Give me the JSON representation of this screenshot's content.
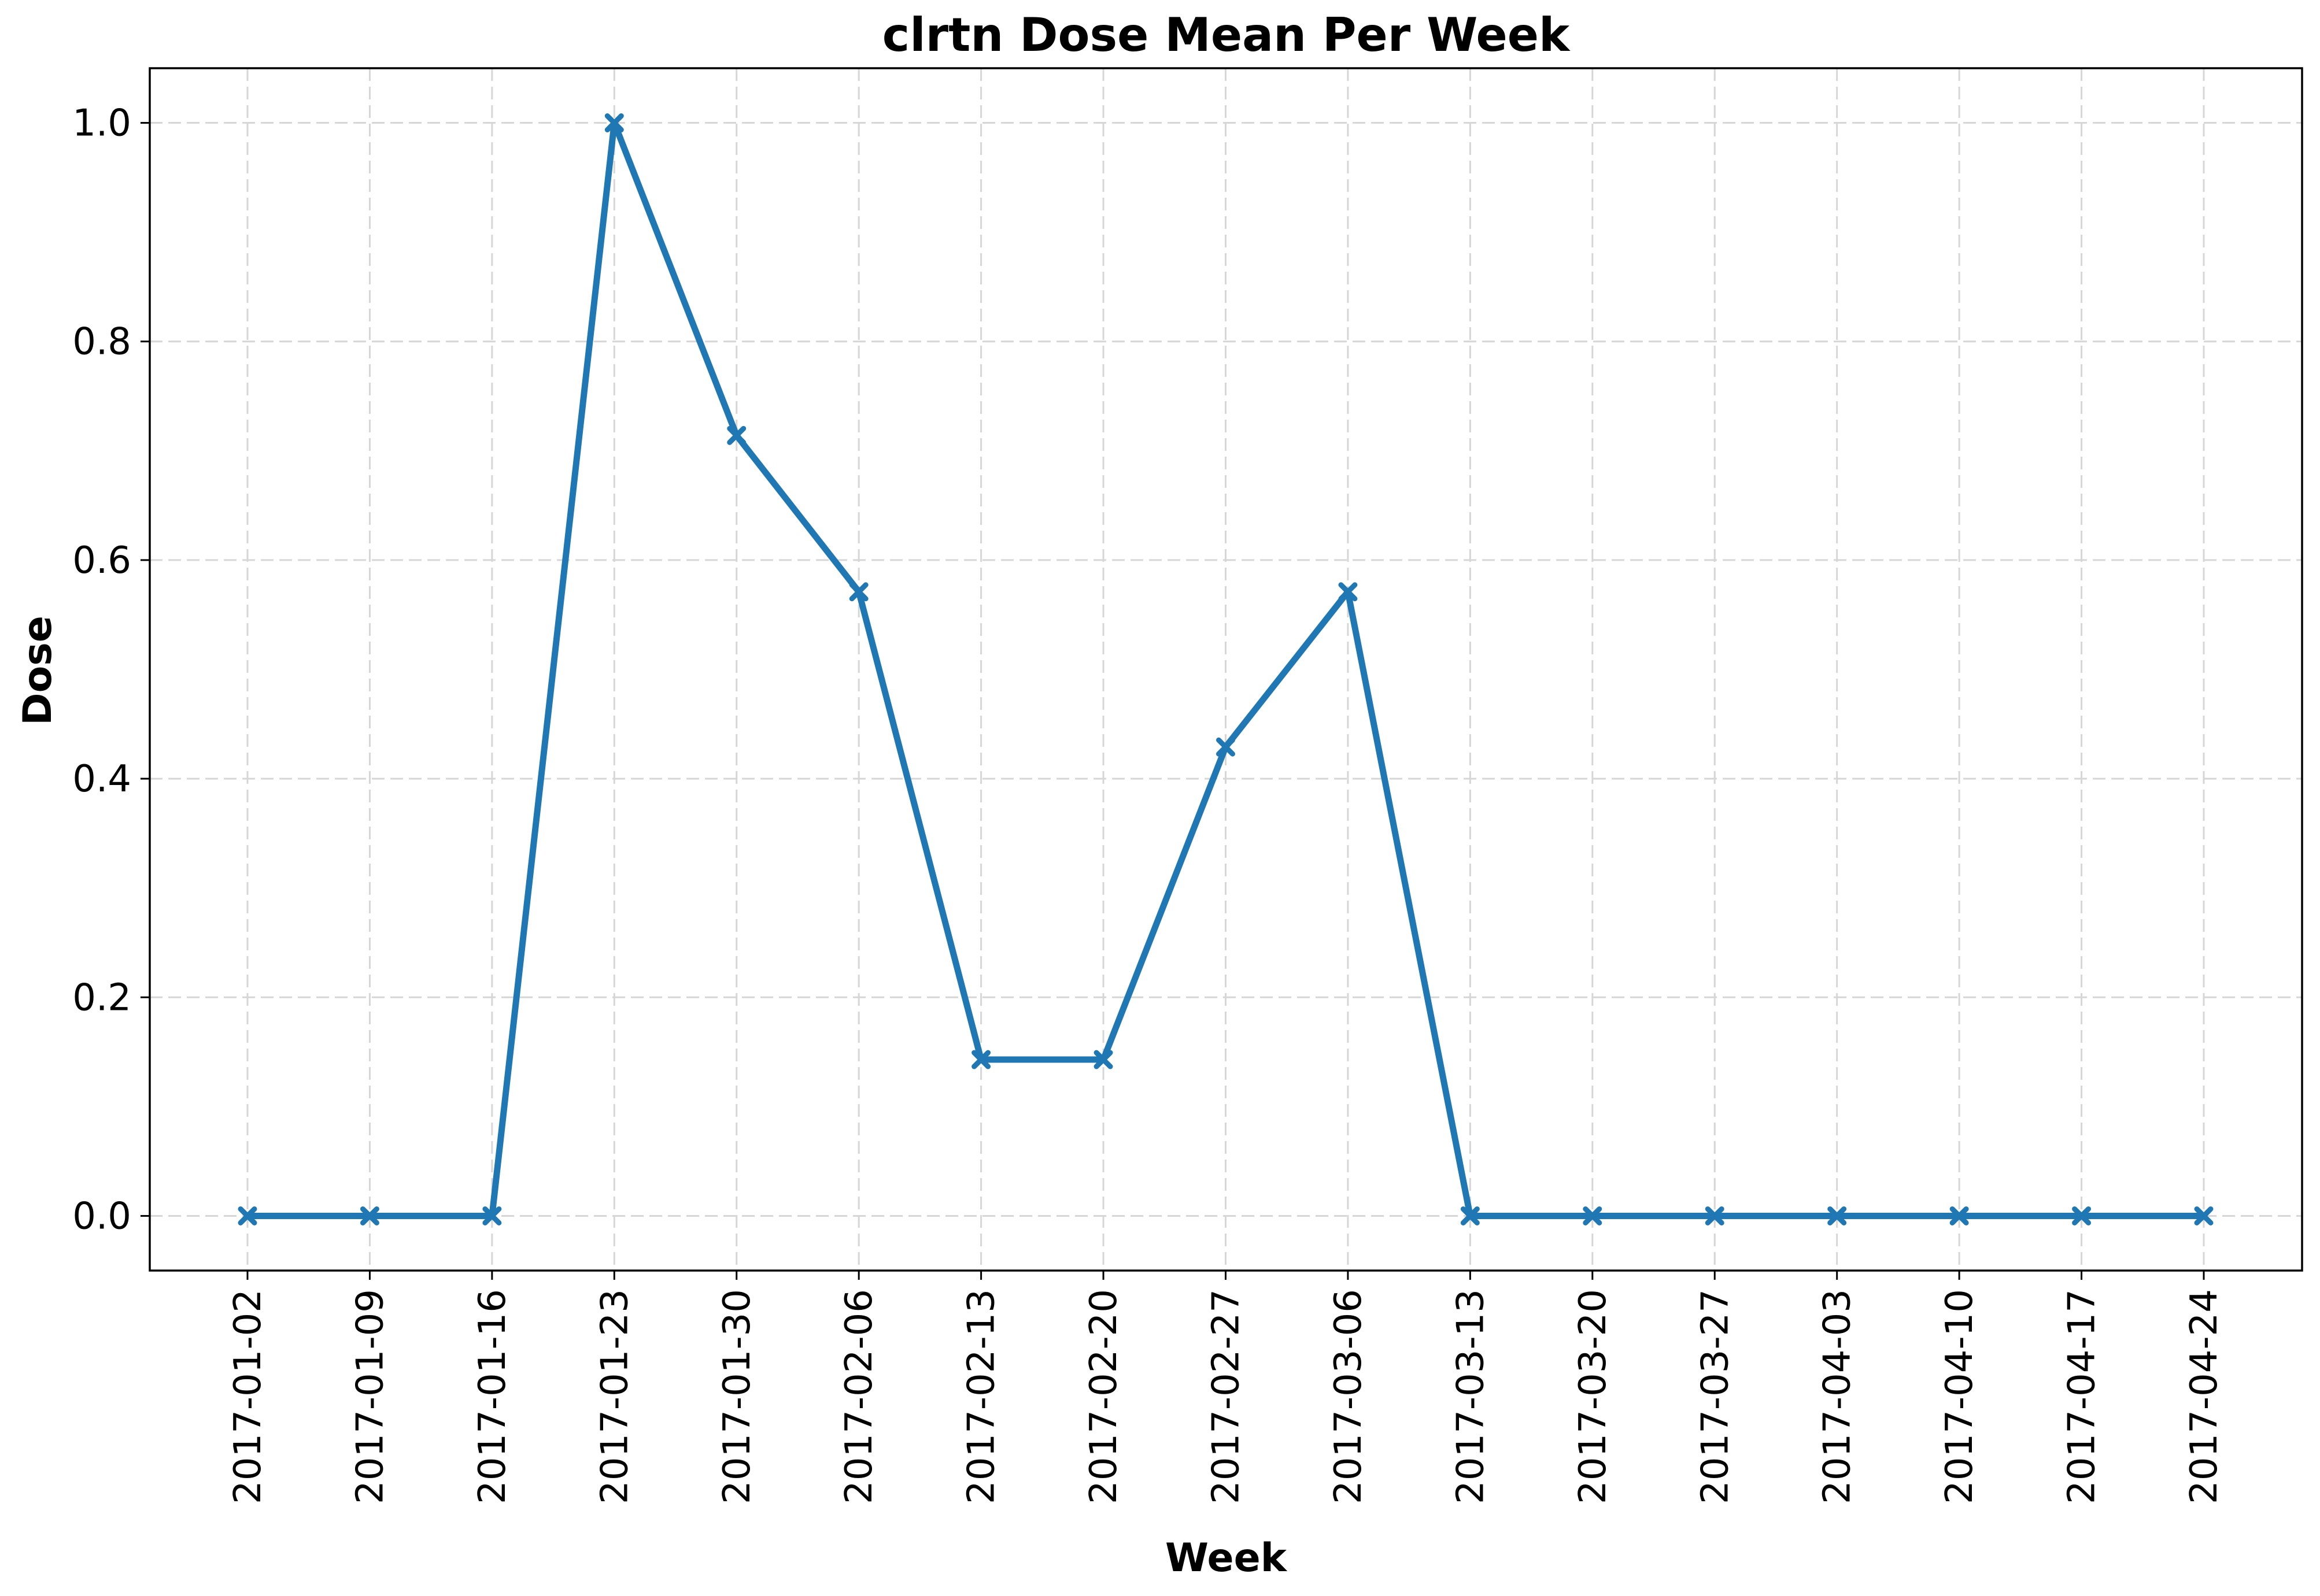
{
  "chart_data": {
    "type": "line",
    "title": "clrtn Dose Mean Per Week",
    "xlabel": "Week",
    "ylabel": "Dose",
    "x": [
      "2017-01-02",
      "2017-01-09",
      "2017-01-16",
      "2017-01-23",
      "2017-01-30",
      "2017-02-06",
      "2017-02-13",
      "2017-02-20",
      "2017-02-27",
      "2017-03-06",
      "2017-03-13",
      "2017-03-20",
      "2017-03-27",
      "2017-04-03",
      "2017-04-10",
      "2017-04-17",
      "2017-04-24"
    ],
    "series": [
      {
        "values": [
          0.0,
          0.0,
          0.0,
          1.0,
          0.714,
          0.571,
          0.143,
          0.143,
          0.429,
          0.571,
          0.0,
          0.0,
          0.0,
          0.0,
          0.0,
          0.0,
          0.0
        ],
        "color": "#1f77b4",
        "marker": "x"
      }
    ],
    "yticks": [
      "0.0",
      "0.2",
      "0.4",
      "0.6",
      "0.8",
      "1.0"
    ],
    "ylim": [
      -0.05,
      1.05
    ],
    "grid": true
  }
}
